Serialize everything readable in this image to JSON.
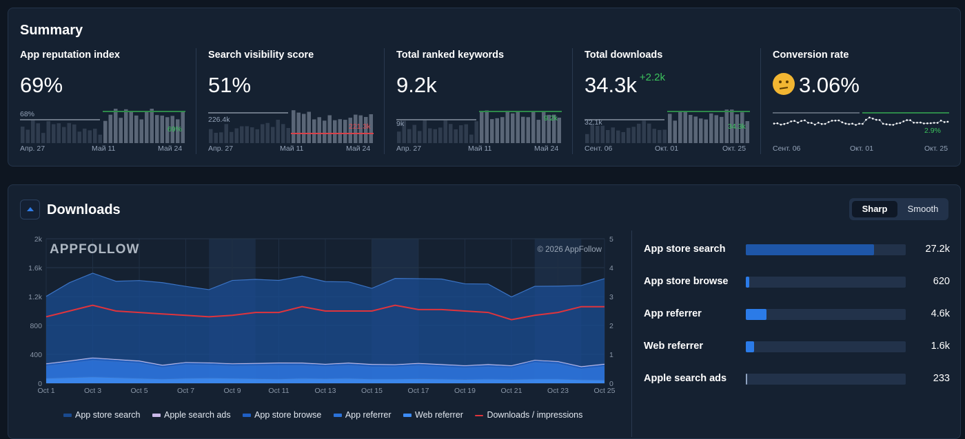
{
  "summary": {
    "title": "Summary",
    "kpis": [
      {
        "label": "App reputation index",
        "value": "69%",
        "delta": "",
        "ref_label": "68%",
        "end_label": "69%",
        "x_ticks": [
          "Апр. 27",
          "Май 11",
          "Май 24"
        ]
      },
      {
        "label": "Search visibility score",
        "value": "51%",
        "delta": "",
        "ref_label": "226.4k",
        "end_label": "221.3k",
        "x_ticks": [
          "Апр. 27",
          "Май 11",
          "Май 24"
        ]
      },
      {
        "label": "Total ranked keywords",
        "value": "9.2k",
        "delta": "",
        "ref_label": "9k",
        "end_label": "9.2k",
        "x_ticks": [
          "Апр. 27",
          "Май 11",
          "Май 24"
        ]
      },
      {
        "label": "Total downloads",
        "value": "34.3k",
        "delta": "+2.2k",
        "ref_label": "32.1k",
        "end_label": "34.3k",
        "x_ticks": [
          "Сент. 06",
          "Окт. 01",
          "Окт. 25"
        ]
      },
      {
        "label": "Conversion rate",
        "value": "3.06%",
        "delta": "",
        "ref_label": "",
        "end_label": "2.9%",
        "x_ticks": [
          "Сент. 06",
          "Окт. 01",
          "Окт. 25"
        ]
      }
    ]
  },
  "downloads": {
    "title": "Downloads",
    "toggle": {
      "sharp": "Sharp",
      "smooth": "Smooth"
    },
    "watermark": "APPFOLLOW",
    "copyright": "© 2026 AppFollow",
    "sources": [
      {
        "label": "App store search",
        "value": "27.2k",
        "fraction": 0.8,
        "color": "#1e56a8"
      },
      {
        "label": "App store browse",
        "value": "620",
        "fraction": 0.02,
        "color": "#2b7be8"
      },
      {
        "label": "App referrer",
        "value": "4.6k",
        "fraction": 0.13,
        "color": "#2b7be8"
      },
      {
        "label": "Web referrer",
        "value": "1.6k",
        "fraction": 0.05,
        "color": "#2b7be8"
      },
      {
        "label": "Apple search ads",
        "value": "233",
        "fraction": 0.01,
        "color": "#8fa3c0"
      }
    ]
  },
  "chart_data": {
    "type": "area",
    "x": [
      "Oct 1",
      "Oct 2",
      "Oct 3",
      "Oct 4",
      "Oct 5",
      "Oct 6",
      "Oct 7",
      "Oct 8",
      "Oct 9",
      "Oct 10",
      "Oct 11",
      "Oct 12",
      "Oct 13",
      "Oct 14",
      "Oct 15",
      "Oct 16",
      "Oct 17",
      "Oct 18",
      "Oct 19",
      "Oct 20",
      "Oct 21",
      "Oct 22",
      "Oct 23",
      "Oct 24",
      "Oct 25"
    ],
    "x_tick_labels": [
      "Oct 1",
      "Oct 3",
      "Oct 5",
      "Oct 7",
      "Oct 9",
      "Oct 11",
      "Oct 13",
      "Oct 15",
      "Oct 17",
      "Oct 19",
      "Oct 21",
      "Oct 23",
      "Oct 25"
    ],
    "y_left_ticks": [
      "0",
      "400",
      "800",
      "1.2k",
      "1.6k",
      "2k"
    ],
    "y_right_ticks": [
      "0",
      "1",
      "2",
      "3",
      "4",
      "5"
    ],
    "ylim_left": [
      0,
      2000
    ],
    "ylim_right": [
      0,
      5
    ],
    "series": [
      {
        "name": "App store search",
        "color": "#1a4a8e",
        "values": [
          930,
          1080,
          1170,
          1080,
          1110,
          1140,
          1050,
          1010,
          1150,
          1160,
          1140,
          1200,
          1140,
          1120,
          1050,
          1190,
          1170,
          1180,
          1130,
          1110,
          950,
          1020,
          1040,
          1120,
          1180
        ]
      },
      {
        "name": "Apple search ads",
        "color": "#c9b8e8",
        "values": [
          8,
          8,
          8,
          7,
          8,
          8,
          7,
          7,
          8,
          8,
          8,
          8,
          8,
          8,
          8,
          7,
          8,
          8,
          8,
          8,
          7,
          7,
          8,
          8,
          8
        ]
      },
      {
        "name": "App store browse",
        "color": "#1f5fc4",
        "values": [
          25,
          24,
          26,
          25,
          24,
          25,
          24,
          24,
          25,
          25,
          26,
          25,
          24,
          25,
          26,
          24,
          25,
          25,
          24,
          25,
          24,
          25,
          26,
          25,
          25
        ]
      },
      {
        "name": "App referrer",
        "color": "#2b72d9",
        "values": [
          170,
          200,
          230,
          220,
          210,
          160,
          190,
          180,
          170,
          180,
          190,
          180,
          170,
          180,
          170,
          170,
          180,
          170,
          160,
          170,
          160,
          230,
          210,
          150,
          190
        ]
      },
      {
        "name": "Web referrer",
        "color": "#3d8cf5",
        "values": [
          70,
          80,
          90,
          80,
          70,
          60,
          70,
          75,
          70,
          65,
          60,
          70,
          65,
          70,
          60,
          60,
          65,
          60,
          55,
          60,
          55,
          60,
          60,
          50,
          45
        ]
      },
      {
        "name": "Downloads / impressions",
        "color": "#e0343c",
        "axis": "right",
        "values": [
          2.3,
          2.5,
          2.7,
          2.5,
          2.45,
          2.4,
          2.35,
          2.3,
          2.35,
          2.45,
          2.45,
          2.65,
          2.5,
          2.5,
          2.5,
          2.7,
          2.55,
          2.55,
          2.5,
          2.45,
          2.2,
          2.35,
          2.45,
          2.65,
          2.65
        ]
      }
    ]
  }
}
